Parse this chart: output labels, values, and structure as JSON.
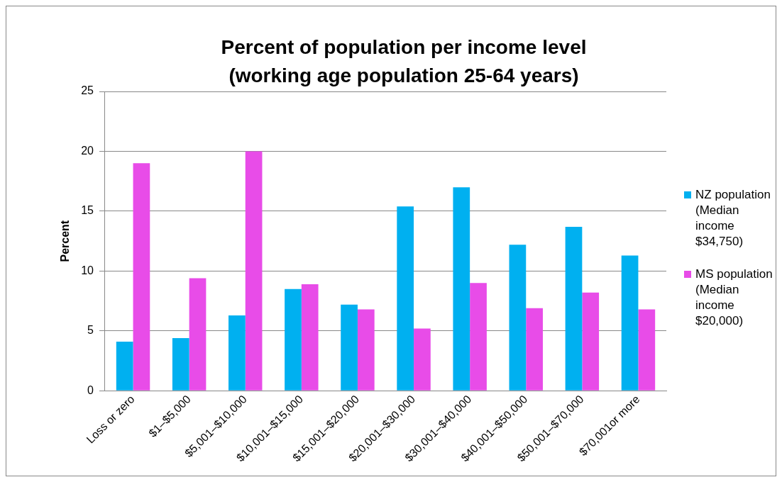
{
  "chart_data": {
    "type": "bar",
    "title": "Percent of population per income level (working age population 25-64 years)",
    "ylabel": "Percent",
    "categories": [
      "Loss or zero",
      "$1–$5,000",
      "$5,001–$10,000",
      "$10,001–$15,000",
      "$15,001–$20,000",
      "$20,001–$30,000",
      "$30,001–$40,000",
      "$40,001–$50,000",
      "$50,001–$70,000",
      "$70,001or more"
    ],
    "series": [
      {
        "name": "NZ population (Median income $34,750)",
        "color": "#00b0f0",
        "values": [
          4.1,
          4.4,
          6.3,
          8.5,
          7.2,
          15.4,
          17.0,
          12.2,
          13.7,
          11.3
        ]
      },
      {
        "name": "MS population (Median income $20,000)",
        "color": "#e84ce8",
        "values": [
          19.0,
          9.4,
          20.0,
          8.9,
          6.8,
          5.2,
          9.0,
          6.9,
          8.2,
          6.8
        ]
      }
    ],
    "ylim": [
      0,
      25
    ],
    "yticks": [
      0,
      5,
      10,
      15,
      20,
      25
    ],
    "grid": "y",
    "legend": "right"
  }
}
